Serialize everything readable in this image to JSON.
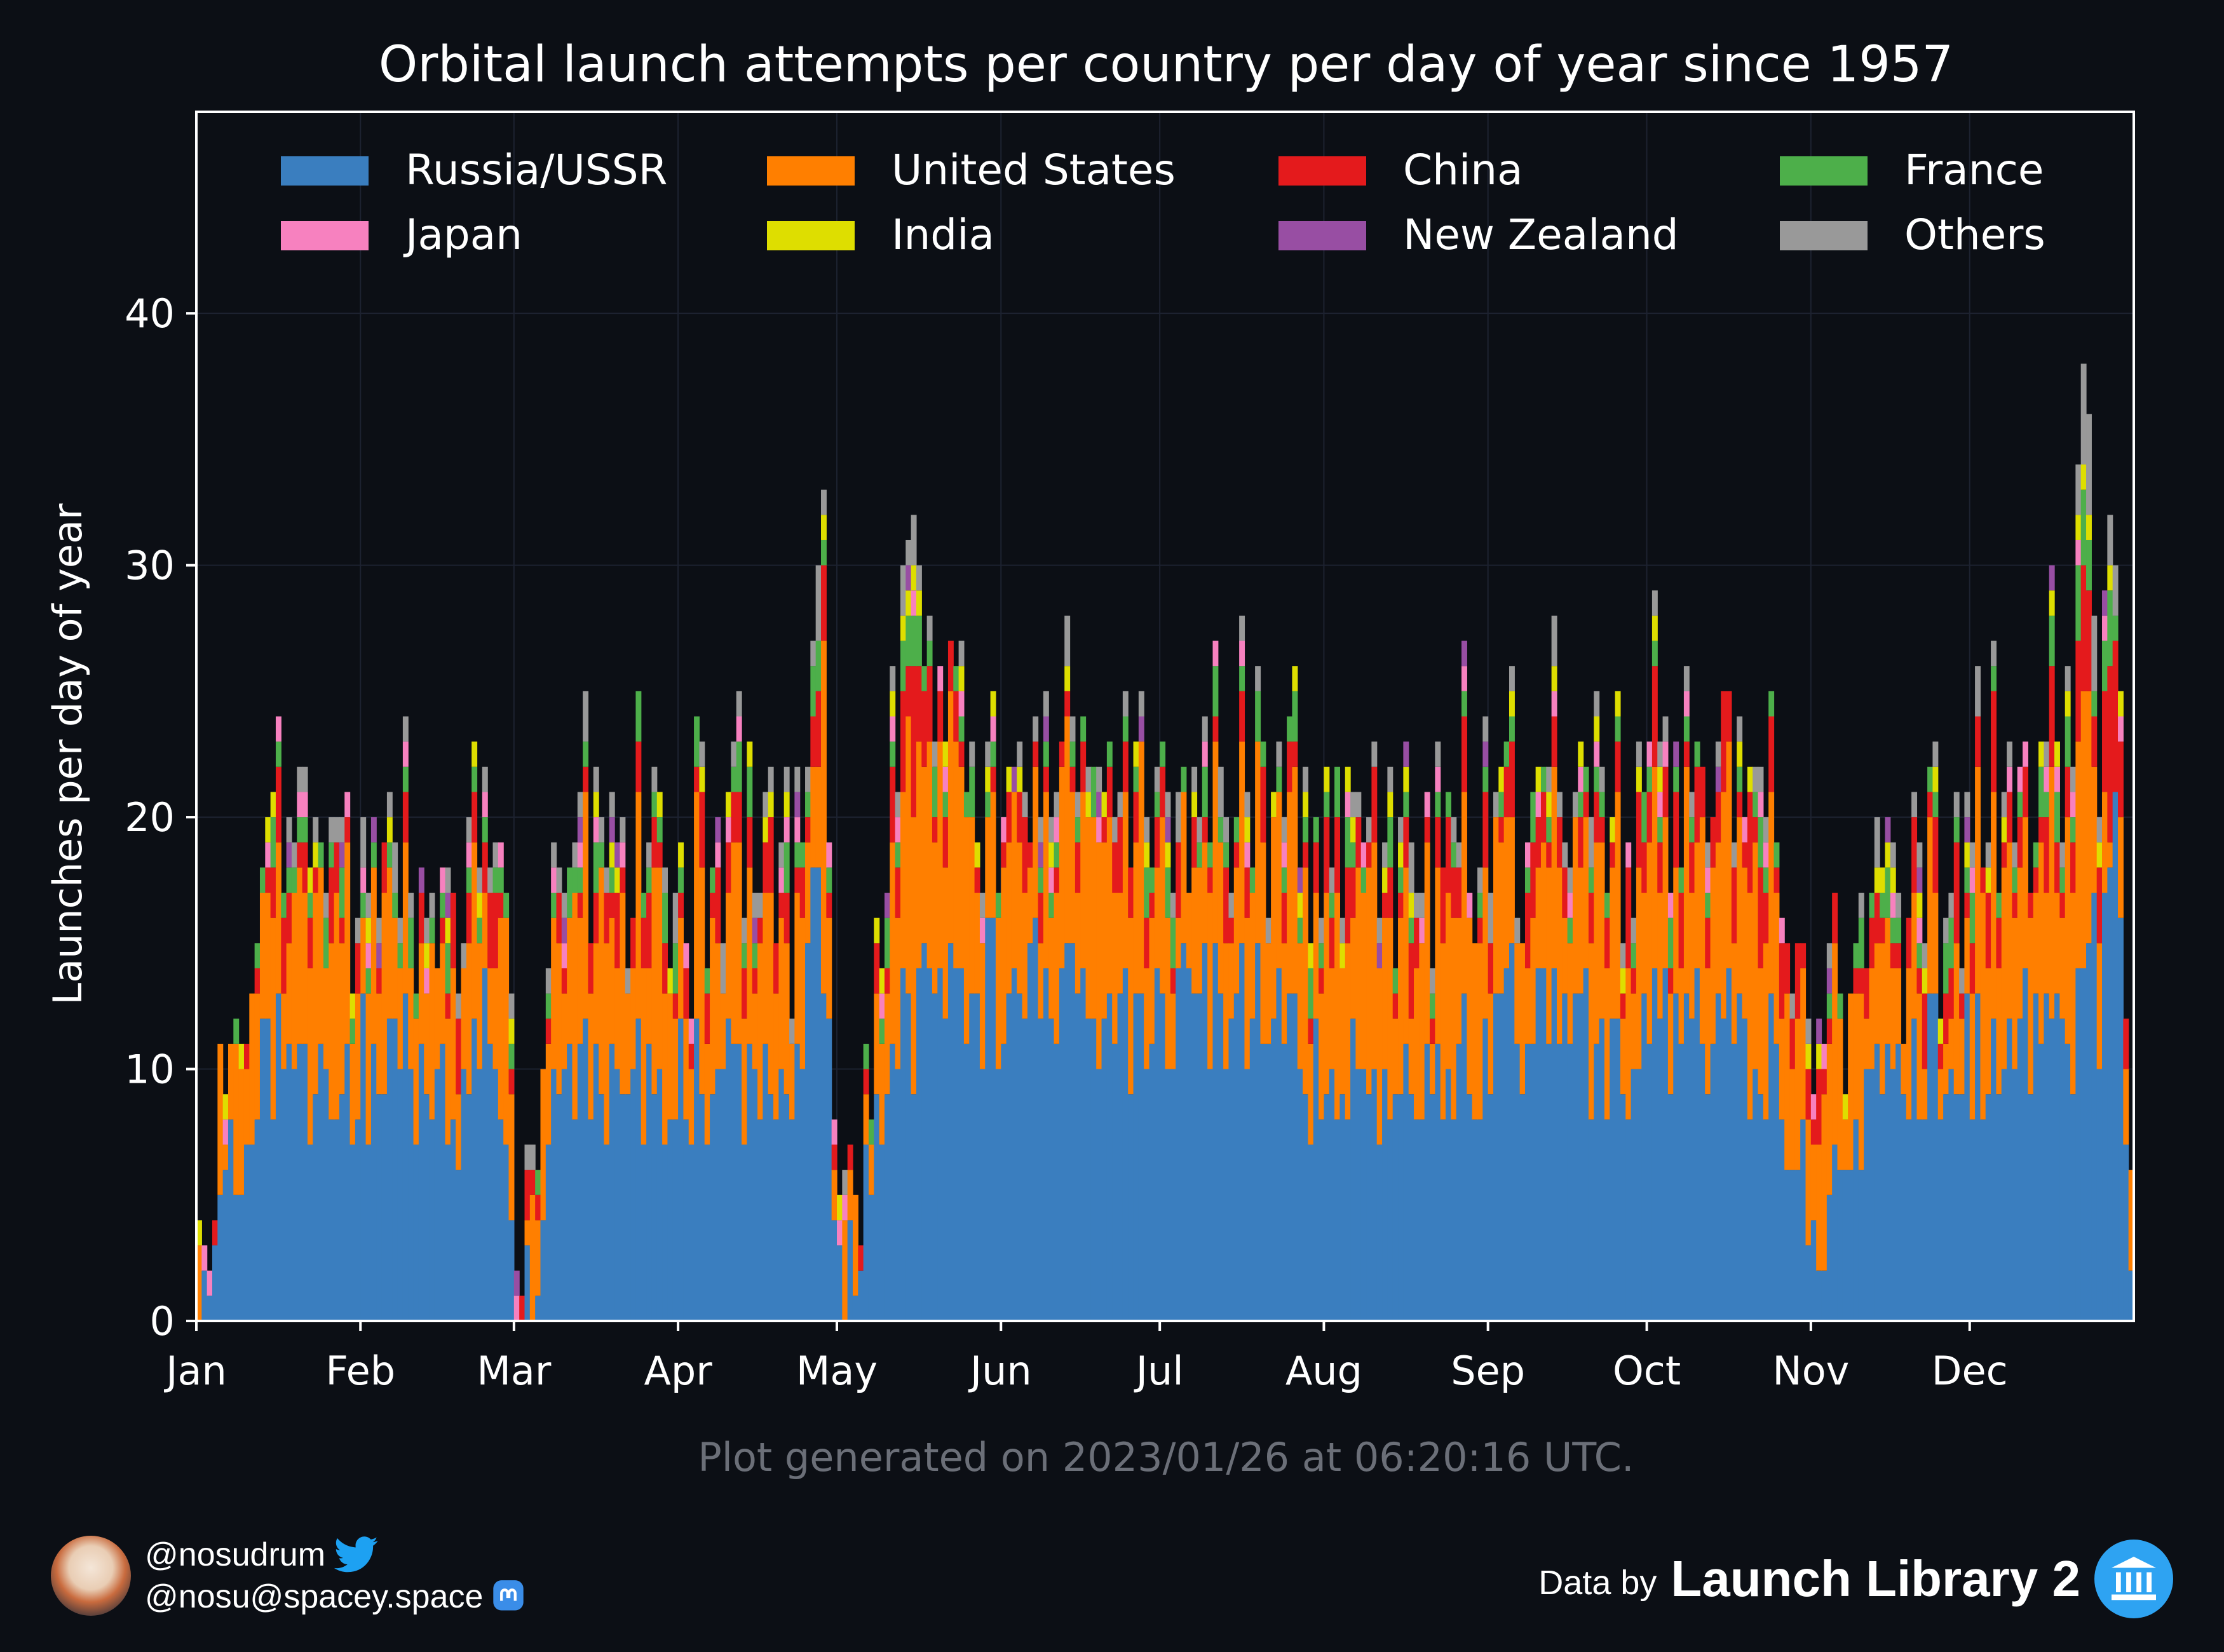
{
  "chart_data": {
    "type": "bar",
    "stacked": true,
    "title": "Orbital launch attempts per country per day of year since 1957",
    "ylabel": "Launches per day of year",
    "xlabel": "",
    "ylim": [
      0,
      48
    ],
    "yticks": [
      0,
      10,
      20,
      30,
      40
    ],
    "months": [
      {
        "label": "Jan",
        "day": 1
      },
      {
        "label": "Feb",
        "day": 32
      },
      {
        "label": "Mar",
        "day": 61
      },
      {
        "label": "Apr",
        "day": 92
      },
      {
        "label": "May",
        "day": 122
      },
      {
        "label": "Jun",
        "day": 153
      },
      {
        "label": "Jul",
        "day": 183
      },
      {
        "label": "Aug",
        "day": 214
      },
      {
        "label": "Sep",
        "day": 245
      },
      {
        "label": "Oct",
        "day": 275
      },
      {
        "label": "Nov",
        "day": 306
      },
      {
        "label": "Dec",
        "day": 336
      }
    ],
    "days": 366,
    "grid": true,
    "legend_position": "top",
    "series_order": [
      "Russia/USSR",
      "United States",
      "China",
      "France",
      "Japan",
      "India",
      "New Zealand",
      "Others"
    ],
    "legend": [
      {
        "name": "Russia/USSR",
        "color": "#3a7ebf"
      },
      {
        "name": "United States",
        "color": "#ff7f00"
      },
      {
        "name": "China",
        "color": "#e41a1c"
      },
      {
        "name": "France",
        "color": "#4daf4a"
      },
      {
        "name": "Japan",
        "color": "#f781bf"
      },
      {
        "name": "India",
        "color": "#dede00"
      },
      {
        "name": "New Zealand",
        "color": "#984ea3"
      },
      {
        "name": "Others",
        "color": "#999999"
      }
    ],
    "sampled_totals": {
      "days": [
        1,
        5,
        10,
        15,
        20,
        25,
        32,
        40,
        50,
        55,
        60,
        61,
        70,
        80,
        90,
        100,
        110,
        115,
        118,
        120,
        122,
        125,
        130,
        137,
        140,
        150,
        160,
        170,
        180,
        185,
        190,
        200,
        210,
        220,
        230,
        240,
        250,
        260,
        270,
        275,
        280,
        290,
        300,
        306,
        310,
        320,
        330,
        340,
        350,
        355,
        358,
        360,
        363,
        366
      ],
      "russia": [
        1,
        6,
        8,
        10,
        11,
        9,
        10,
        10,
        8,
        11,
        7,
        0,
        9,
        9,
        10,
        9,
        8,
        11,
        19,
        12,
        1,
        3,
        9,
        13,
        12,
        13,
        13,
        12,
        11,
        13,
        13,
        12,
        10,
        10,
        9,
        10,
        12,
        11,
        10,
        12,
        11,
        11,
        10,
        2,
        7,
        10,
        11,
        11,
        11,
        10,
        16,
        12,
        19,
        1
      ],
      "united_states": [
        0,
        3,
        5,
        5,
        6,
        6,
        6,
        5,
        6,
        5,
        7,
        0,
        6,
        6,
        6,
        6,
        6,
        5,
        5,
        6,
        2,
        1,
        6,
        11,
        7,
        6,
        6,
        6,
        7,
        5,
        5,
        6,
        6,
        7,
        5,
        5,
        5,
        5,
        6,
        6,
        6,
        7,
        6,
        4,
        5,
        5,
        4,
        7,
        6,
        8,
        8,
        6,
        2,
        2
      ],
      "china": [
        0,
        0,
        0,
        1,
        1,
        1,
        1,
        1,
        1,
        1,
        1,
        0,
        1,
        1,
        1,
        1,
        1,
        1,
        2,
        1,
        0,
        0,
        1,
        4,
        1,
        1,
        1,
        1,
        1,
        1,
        1,
        1,
        1,
        1,
        1,
        1,
        1,
        1,
        2,
        2,
        2,
        2,
        2,
        1,
        1,
        1,
        2,
        2,
        2,
        2,
        3,
        2,
        6,
        0
      ],
      "france": [
        0,
        0,
        0,
        1,
        1,
        1,
        1,
        1,
        1,
        1,
        1,
        0,
        1,
        1,
        1,
        1,
        1,
        1,
        1,
        1,
        0,
        0,
        1,
        2,
        1,
        1,
        1,
        1,
        1,
        1,
        1,
        1,
        1,
        1,
        1,
        1,
        1,
        1,
        1,
        1,
        1,
        1,
        1,
        0,
        1,
        1,
        1,
        1,
        1,
        2,
        3,
        1,
        2,
        0
      ],
      "others": [
        0,
        0,
        0,
        1,
        1,
        1,
        1,
        1,
        1,
        1,
        1,
        1,
        1,
        1,
        1,
        1,
        1,
        1,
        3,
        1,
        0,
        0,
        1,
        2,
        1,
        1,
        1,
        1,
        1,
        1,
        1,
        1,
        1,
        1,
        1,
        1,
        1,
        1,
        1,
        1,
        1,
        1,
        1,
        0,
        1,
        1,
        1,
        1,
        1,
        2,
        4,
        1,
        2,
        0
      ]
    },
    "notable_peaks": [
      {
        "day": 119,
        "total": 33
      },
      {
        "day": 136,
        "total": 32
      },
      {
        "day": 351,
        "total": 30
      },
      {
        "day": 357,
        "total": 38
      },
      {
        "day": 362,
        "total": 31
      }
    ]
  },
  "footer": {
    "generated": "Plot generated on 2023/01/26 at 06:20:16 UTC.",
    "twitter_handle": "@nosudrum",
    "mastodon_handle": "@nosu@spacey.space",
    "credit_prefix": "Data by",
    "credit_brand": "Launch Library 2"
  },
  "icons": [
    "avatar",
    "twitter-icon",
    "mastodon-icon",
    "launch-library-logo"
  ]
}
